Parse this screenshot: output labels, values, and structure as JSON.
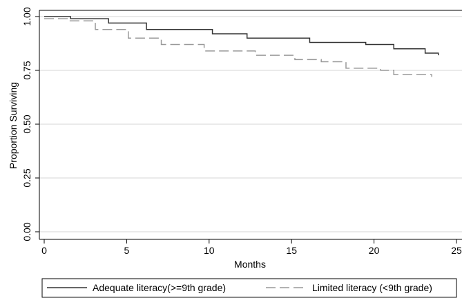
{
  "chart_data": {
    "type": "line",
    "xlabel": "Months",
    "ylabel": "Proportion Surviving",
    "xlim": [
      0,
      25
    ],
    "ylim": [
      0,
      1.0
    ],
    "x_ticks": [
      "0",
      "5",
      "10",
      "15",
      "20",
      "25"
    ],
    "y_ticks": [
      "0.00",
      "0.25",
      "0.50",
      "0.75",
      "1.00"
    ],
    "x_tick_values": [
      0,
      5,
      10,
      15,
      20,
      25
    ],
    "y_tick_values": [
      0,
      0.25,
      0.5,
      0.75,
      1.0
    ],
    "grid": "horizontal",
    "legend_position": "bottom",
    "series": [
      {
        "name": "Adequate literacy(>=9th grade)",
        "color": "#333333",
        "dash": "solid",
        "x": [
          0,
          1.6,
          3.9,
          6.2,
          10.2,
          12.3,
          16.1,
          19.5,
          21.2,
          23.1,
          23.9
        ],
        "y": [
          1.0,
          0.99,
          0.97,
          0.94,
          0.92,
          0.9,
          0.88,
          0.87,
          0.85,
          0.83,
          0.82
        ]
      },
      {
        "name": "Limited literacy (<9th grade)",
        "color": "#999999",
        "dash": "dashed",
        "x": [
          0,
          1.4,
          3.1,
          5.1,
          7.1,
          9.7,
          12.8,
          15.2,
          16.8,
          18.3,
          20.4,
          21.2,
          22.6,
          23.5
        ],
        "y": [
          0.99,
          0.98,
          0.94,
          0.9,
          0.87,
          0.84,
          0.82,
          0.8,
          0.79,
          0.76,
          0.75,
          0.73,
          0.73,
          0.72
        ]
      }
    ]
  }
}
